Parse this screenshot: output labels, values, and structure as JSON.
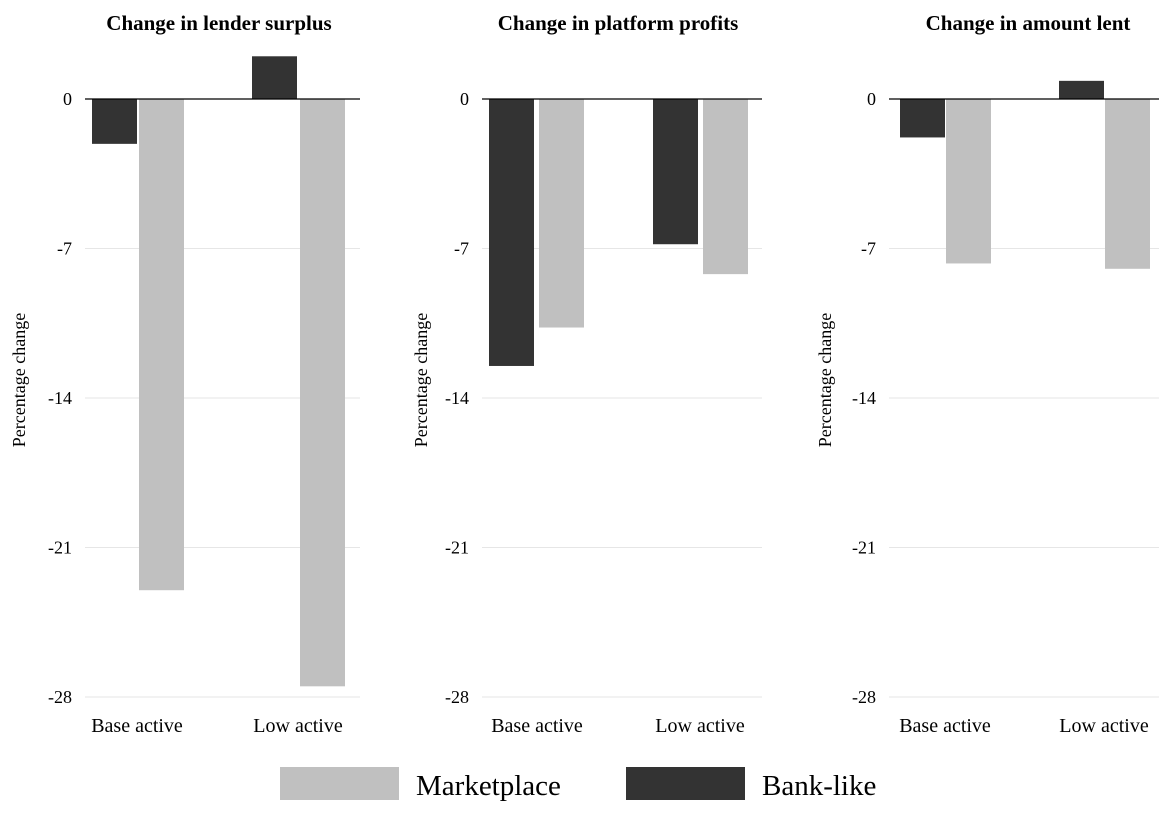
{
  "colors": {
    "marketplace": "#c0c0c0",
    "bank_like": "#333333",
    "grid": "#e6e6e6",
    "zero_line": "#000000"
  },
  "legend": {
    "position": "bottom-center",
    "items": [
      {
        "key": "marketplace",
        "label": "Marketplace"
      },
      {
        "key": "bank_like",
        "label": "Bank-like"
      }
    ]
  },
  "chart_data": [
    {
      "type": "bar",
      "title": "Change in lender surplus",
      "ylabel": "Percentage change",
      "categories": [
        "Base active",
        "Low active"
      ],
      "yticks": [
        0,
        -7,
        -14,
        -21,
        -28
      ],
      "ylim": [
        -28,
        2
      ],
      "grid": true,
      "series": [
        {
          "name": "Bank-like",
          "key": "bank_like",
          "values": [
            -2.1,
            2.0
          ]
        },
        {
          "name": "Marketplace",
          "key": "marketplace",
          "values": [
            -23.0,
            -27.5
          ]
        }
      ]
    },
    {
      "type": "bar",
      "title": "Change in platform profits",
      "ylabel": "Percentage change",
      "categories": [
        "Base active",
        "Low active"
      ],
      "yticks": [
        0,
        -7,
        -14,
        -21,
        -28
      ],
      "ylim": [
        -28,
        2
      ],
      "grid": true,
      "series": [
        {
          "name": "Bank-like",
          "key": "bank_like",
          "values": [
            -12.5,
            -6.8
          ]
        },
        {
          "name": "Marketplace",
          "key": "marketplace",
          "values": [
            -10.7,
            -8.2
          ]
        }
      ]
    },
    {
      "type": "bar",
      "title": "Change in amount lent",
      "ylabel": "Percentage change",
      "categories": [
        "Base active",
        "Low active"
      ],
      "yticks": [
        0,
        -7,
        -14,
        -21,
        -28
      ],
      "ylim": [
        -28,
        2
      ],
      "grid": true,
      "series": [
        {
          "name": "Bank-like",
          "key": "bank_like",
          "values": [
            -1.8,
            0.85
          ]
        },
        {
          "name": "Marketplace",
          "key": "marketplace",
          "values": [
            -7.7,
            -7.95
          ]
        }
      ]
    }
  ]
}
